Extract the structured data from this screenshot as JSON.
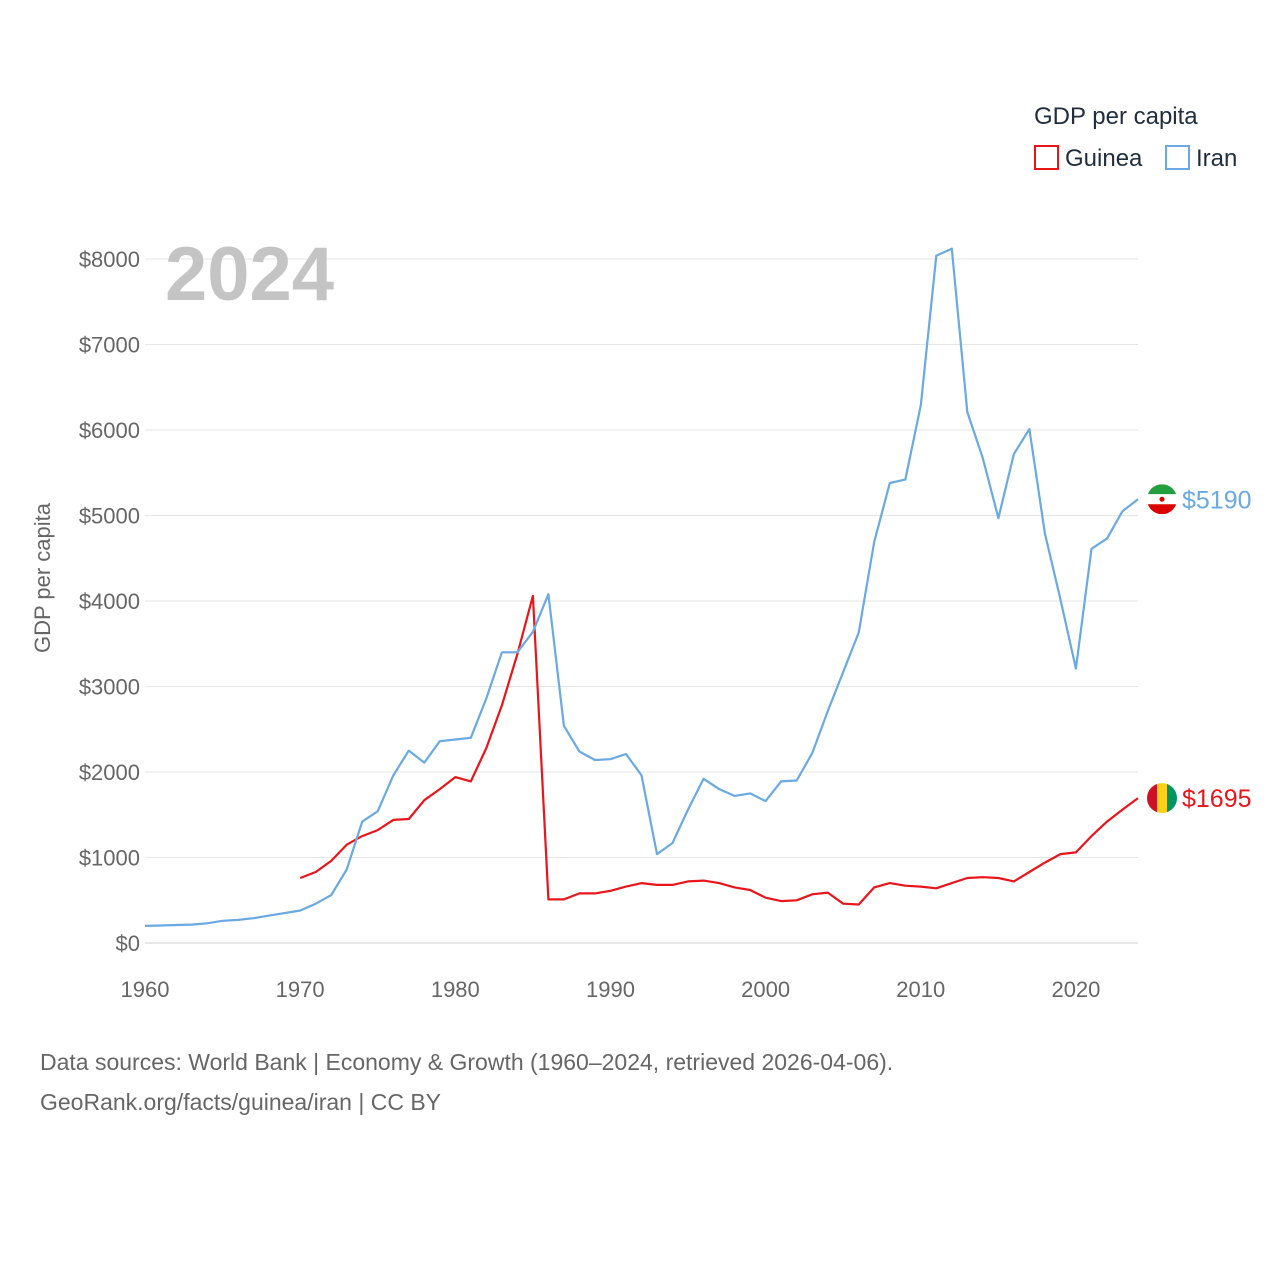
{
  "chart_data": {
    "type": "line",
    "year_label": "2024",
    "legend_title": "GDP per capita",
    "ylabel": "GDP per capita",
    "xlim": [
      1960,
      2024
    ],
    "ylim": [
      0,
      8000
    ],
    "x_ticks": [
      1960,
      1970,
      1980,
      1990,
      2000,
      2010,
      2020
    ],
    "y_ticks": [
      0,
      1000,
      2000,
      3000,
      4000,
      5000,
      6000,
      7000,
      8000
    ],
    "y_tick_labels": [
      "$0",
      "$1000",
      "$2000",
      "$3000",
      "$4000",
      "$5000",
      "$6000",
      "$7000",
      "$8000"
    ],
    "series": [
      {
        "name": "Guinea",
        "color": "#e8151b",
        "end_label": "$1695",
        "flag": "guinea-flag",
        "x": [
          1970,
          1971,
          1972,
          1973,
          1974,
          1975,
          1976,
          1977,
          1978,
          1979,
          1980,
          1981,
          1982,
          1983,
          1984,
          1985,
          1986,
          1987,
          1988,
          1989,
          1990,
          1991,
          1992,
          1993,
          1994,
          1995,
          1996,
          1997,
          1998,
          1999,
          2000,
          2001,
          2002,
          2003,
          2004,
          2005,
          2006,
          2007,
          2008,
          2009,
          2010,
          2011,
          2012,
          2013,
          2014,
          2015,
          2016,
          2017,
          2018,
          2019,
          2020,
          2021,
          2022,
          2023,
          2024
        ],
        "values": [
          760,
          830,
          960,
          1150,
          1250,
          1320,
          1440,
          1450,
          1670,
          1800,
          1940,
          1890,
          2280,
          2780,
          3380,
          4060,
          510,
          510,
          580,
          580,
          610,
          660,
          700,
          680,
          680,
          720,
          730,
          700,
          650,
          620,
          530,
          490,
          500,
          570,
          590,
          460,
          450,
          650,
          700,
          670,
          660,
          640,
          700,
          760,
          770,
          760,
          720,
          830,
          940,
          1040,
          1060,
          1250,
          1420,
          1560,
          1695
        ]
      },
      {
        "name": "Iran",
        "color": "#6aa9e1",
        "end_label": "$5190",
        "flag": "iran-flag",
        "x": [
          1960,
          1961,
          1962,
          1963,
          1964,
          1965,
          1966,
          1967,
          1968,
          1969,
          1970,
          1971,
          1972,
          1973,
          1974,
          1975,
          1976,
          1977,
          1978,
          1979,
          1980,
          1981,
          1982,
          1983,
          1984,
          1985,
          1986,
          1987,
          1988,
          1989,
          1990,
          1991,
          1992,
          1993,
          1994,
          1995,
          1996,
          1997,
          1998,
          1999,
          2000,
          2001,
          2002,
          2003,
          2004,
          2005,
          2006,
          2007,
          2008,
          2009,
          2010,
          2011,
          2012,
          2013,
          2014,
          2015,
          2016,
          2017,
          2018,
          2019,
          2020,
          2021,
          2022,
          2023,
          2024
        ],
        "values": [
          200,
          205,
          210,
          215,
          230,
          260,
          270,
          290,
          320,
          350,
          380,
          460,
          560,
          860,
          1420,
          1540,
          1960,
          2250,
          2110,
          2360,
          2380,
          2400,
          2860,
          3400,
          3400,
          3640,
          4080,
          2540,
          2240,
          2140,
          2150,
          2210,
          1960,
          1040,
          1170,
          1560,
          1920,
          1800,
          1720,
          1750,
          1660,
          1890,
          1900,
          2220,
          2710,
          3170,
          3630,
          4690,
          5380,
          5420,
          6290,
          8040,
          8120,
          6210,
          5670,
          4970,
          5720,
          6010,
          4790,
          4020,
          3210,
          4610,
          4730,
          5050,
          5190
        ]
      }
    ]
  },
  "footer": {
    "source_line1": "Data sources: World Bank | Economy & Growth (1960–2024, retrieved 2026-04-06).",
    "source_line2": "GeoRank.org/facts/guinea/iran | CC BY"
  }
}
